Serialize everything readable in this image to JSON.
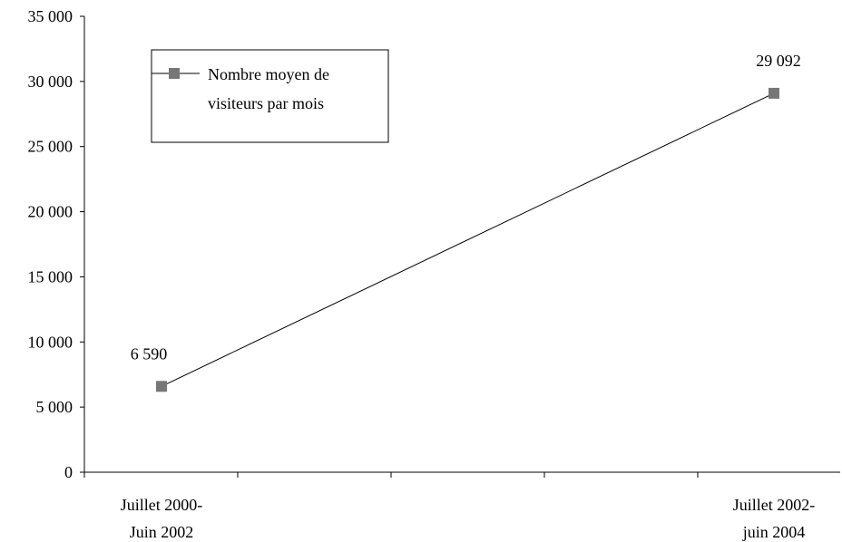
{
  "chart_data": {
    "type": "line",
    "categories": [
      [
        "Juillet 2000-",
        "Juin 2002"
      ],
      [
        "Juillet 2002-",
        "juin 2004"
      ]
    ],
    "series": [
      {
        "name": "Nombre moyen de visiteurs par mois",
        "values": [
          6590,
          29092
        ],
        "data_labels": [
          "6 590",
          "29 092"
        ],
        "color": "#777777",
        "marker": "square"
      }
    ],
    "ylim": [
      0,
      35000
    ],
    "y_ticks": [
      {
        "value": 0,
        "label": "0"
      },
      {
        "value": 5000,
        "label": "5 000"
      },
      {
        "value": 10000,
        "label": "10 000"
      },
      {
        "value": 15000,
        "label": "15 000"
      },
      {
        "value": 20000,
        "label": "20 000"
      },
      {
        "value": 25000,
        "label": "25 000"
      },
      {
        "value": 30000,
        "label": "30 000"
      },
      {
        "value": 35000,
        "label": "35 000"
      }
    ],
    "legend": {
      "lines": [
        "Nombre moyen de",
        "visiteurs par mois"
      ],
      "placement": "top-left"
    },
    "grid": false
  }
}
